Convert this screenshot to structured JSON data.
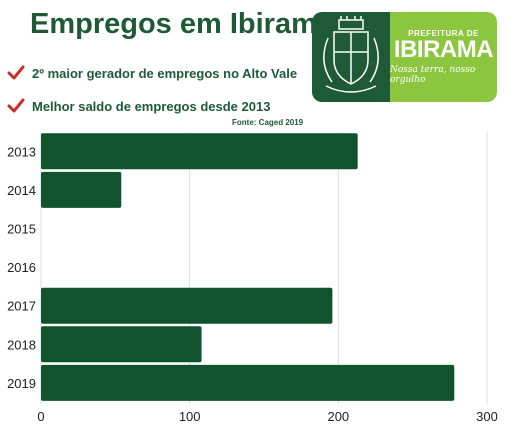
{
  "header": {
    "title": "Empregos em Ibirama",
    "bullets": [
      "2º maior gerador de empregos no Alto Vale",
      "Melhor saldo de empregos desde 2013"
    ],
    "source": "Fonte: Caged 2019"
  },
  "logo": {
    "prefix": "PREFEITURA DE",
    "city": "IBIRAMA",
    "motto": "Nossa terra, nosso orgulho"
  },
  "colors": {
    "brand_dark": "#1e5a36",
    "brand_light": "#8cc63f",
    "bar": "#11532d",
    "check": "#c9302c",
    "grid": "#dddddd"
  },
  "icons": [
    "check-icon",
    "crest-icon"
  ],
  "chart_data": {
    "type": "bar",
    "orientation": "horizontal",
    "categories": [
      "2013",
      "2014",
      "2015",
      "2016",
      "2017",
      "2018",
      "2019"
    ],
    "values": [
      213,
      54,
      null,
      null,
      196,
      108,
      278
    ],
    "xlim": [
      0,
      300
    ],
    "xticks": [
      0,
      100,
      200,
      300
    ],
    "grid": true
  }
}
